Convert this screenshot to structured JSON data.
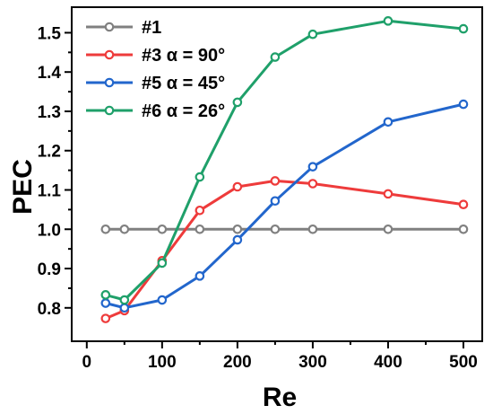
{
  "chart_data": {
    "type": "line",
    "xlabel": "Re",
    "ylabel": "PEC",
    "xlim": [
      -20,
      525
    ],
    "ylim": [
      0.715,
      1.565
    ],
    "x_ticks": [
      0,
      100,
      200,
      300,
      400,
      500
    ],
    "y_ticks": [
      0.8,
      0.9,
      1.0,
      1.1,
      1.2,
      1.3,
      1.4,
      1.5
    ],
    "x_tick_labels": [
      "0",
      "100",
      "200",
      "300",
      "400",
      "500"
    ],
    "y_tick_labels": [
      "0.8",
      "0.9",
      "1.0",
      "1.1",
      "1.2",
      "1.3",
      "1.4",
      "1.5"
    ],
    "grid": false,
    "legend_position": "top-left",
    "series": [
      {
        "name": "#1",
        "color": "#808080",
        "x": [
          25,
          50,
          100,
          150,
          200,
          250,
          300,
          400,
          500
        ],
        "y": [
          1.0,
          1.0,
          1.0,
          1.0,
          1.0,
          1.0,
          1.0,
          1.0,
          1.0
        ]
      },
      {
        "name": "#3 α = 90°",
        "color": "#ee3b3b",
        "x": [
          25,
          50,
          100,
          150,
          200,
          250,
          300,
          400,
          500
        ],
        "y": [
          0.773,
          0.793,
          0.92,
          1.048,
          1.108,
          1.123,
          1.116,
          1.09,
          1.063
        ]
      },
      {
        "name": "#5 α = 45°",
        "color": "#2266cc",
        "x": [
          25,
          50,
          100,
          150,
          200,
          250,
          300,
          400,
          500
        ],
        "y": [
          0.812,
          0.8,
          0.82,
          0.881,
          0.973,
          1.072,
          1.159,
          1.273,
          1.318
        ]
      },
      {
        "name": "#6 α = 26°",
        "color": "#1fa06a",
        "x": [
          25,
          50,
          100,
          150,
          200,
          250,
          300,
          400,
          500
        ],
        "y": [
          0.833,
          0.82,
          0.914,
          1.133,
          1.323,
          1.438,
          1.496,
          1.53,
          1.51
        ]
      }
    ]
  }
}
